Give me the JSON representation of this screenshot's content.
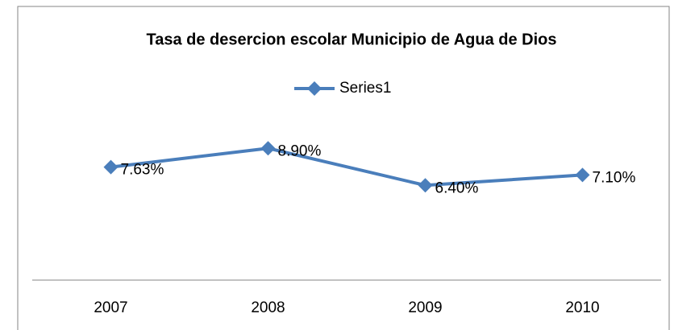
{
  "chart_data": {
    "type": "line",
    "title": "Tasa de desercion escolar Municipio de Agua de Dios",
    "categories": [
      "2007",
      "2008",
      "2009",
      "2010"
    ],
    "series": [
      {
        "name": "Series1",
        "color": "#4a7ebb",
        "values": [
          7.63,
          8.9,
          6.4,
          7.1
        ],
        "value_labels": [
          "7.63%",
          "8.90%",
          "6.40%",
          "7.10%"
        ]
      }
    ],
    "ylim": [
      0,
      10
    ],
    "legend": "top"
  }
}
